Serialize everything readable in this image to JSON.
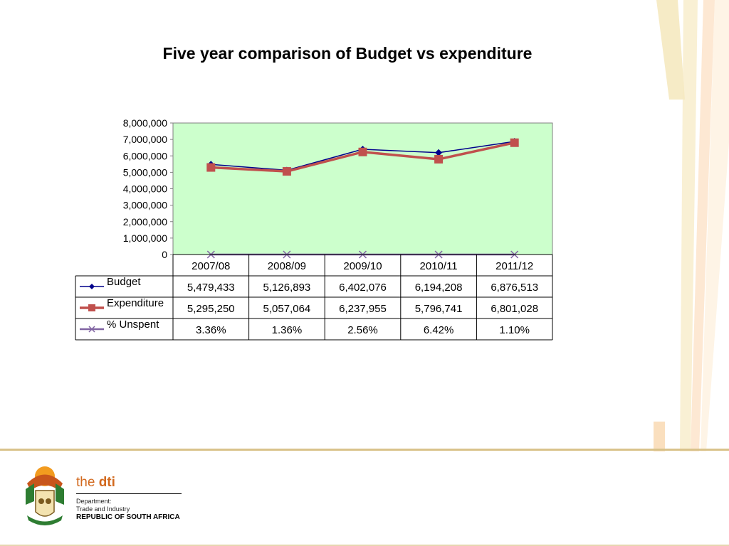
{
  "title": "Five year comparison of Budget vs expenditure",
  "chart_data": {
    "type": "line",
    "categories": [
      "2007/08",
      "2008/09",
      "2009/10",
      "2010/11",
      "2011/12"
    ],
    "y_ticks": [
      "8,000,000",
      "7,000,000",
      "6,000,000",
      "5,000,000",
      "4,000,000",
      "3,000,000",
      "2,000,000",
      "1,000,000",
      "0"
    ],
    "ylim": [
      0,
      8000000
    ],
    "plot_background": "#ccffcc",
    "series": [
      {
        "name": "Budget",
        "color": "#00008b",
        "marker": "diamond",
        "values": [
          5479433,
          5126893,
          6402076,
          6194208,
          6876513
        ],
        "labels": [
          "5,479,433",
          "5,126,893",
          "6,402,076",
          "6,194,208",
          "6,876,513"
        ]
      },
      {
        "name": "Expenditure",
        "color": "#c0504d",
        "marker": "square",
        "values": [
          5295250,
          5057064,
          6237955,
          5796741,
          6801028
        ],
        "labels": [
          "5,295,250",
          "5,057,064",
          "6,237,955",
          "5,796,741",
          "6,801,028"
        ]
      },
      {
        "name": "% Unspent",
        "color": "#8064a2",
        "marker": "x",
        "values": [
          3.36,
          1.36,
          2.56,
          6.42,
          1.1
        ],
        "labels": [
          "3.36%",
          "1.36%",
          "2.56%",
          "6.42%",
          "1.10%"
        ]
      }
    ]
  },
  "footer": {
    "brand_prefix": "the ",
    "brand_name": "dti",
    "line1": "Department:",
    "line2": "Trade and Industry",
    "country": "REPUBLIC OF SOUTH AFRICA"
  }
}
